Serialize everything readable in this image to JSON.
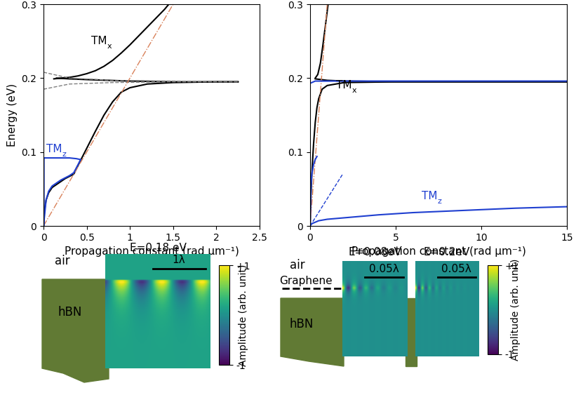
{
  "chart_data": [
    {
      "type": "line",
      "xlabel": "Propagation constant (rad µm⁻¹)",
      "ylabel": "Energy (eV)",
      "xlim": [
        0,
        2.5
      ],
      "xticks": [
        0,
        0.5,
        1,
        1.5,
        2,
        2.5
      ],
      "ylim": [
        0,
        0.3
      ],
      "yticks": [
        0,
        0.1,
        0.2,
        0.3
      ],
      "annotations": [
        {
          "text": "TM",
          "sub": "x",
          "x": 0.55,
          "y": 0.243,
          "color": "#000000"
        },
        {
          "text": "TM",
          "sub": "z",
          "x": 0.03,
          "y": 0.097,
          "color": "#1f3fd0"
        }
      ],
      "series": [
        {
          "color": "#000000",
          "line_style": "solid",
          "x": [
            0.12,
            0.2,
            0.3,
            0.4,
            0.5,
            0.6,
            0.7,
            0.8,
            0.9,
            1.0,
            1.1,
            1.2,
            1.3,
            1.4,
            1.45
          ],
          "values": [
            0.199,
            0.2,
            0.201,
            0.203,
            0.206,
            0.21,
            0.216,
            0.224,
            0.234,
            0.245,
            0.257,
            0.269,
            0.281,
            0.293,
            0.3
          ]
        },
        {
          "color": "#000000",
          "line_style": "solid",
          "x": [
            0,
            0.01,
            0.03,
            0.06,
            0.1,
            0.15,
            0.2,
            0.25,
            0.3,
            0.35,
            0.4,
            0.5,
            0.6,
            0.7,
            0.8,
            0.9,
            1.0,
            1.2,
            1.5,
            2.0,
            2.25
          ],
          "values": [
            0,
            0.02,
            0.035,
            0.045,
            0.052,
            0.056,
            0.06,
            0.064,
            0.067,
            0.07,
            0.082,
            0.105,
            0.128,
            0.15,
            0.168,
            0.181,
            0.187,
            0.192,
            0.194,
            0.195,
            0.195
          ]
        },
        {
          "color": "#000000",
          "line_style": "solid",
          "x": [
            0.15,
            0.3,
            0.5,
            1.0,
            1.5,
            2.0,
            2.25
          ],
          "values": [
            0.2,
            0.199,
            0.198,
            0.196,
            0.195,
            0.195,
            0.195
          ]
        },
        {
          "color": "#808080",
          "line_style": "dashed",
          "x": [
            0,
            0.3,
            0.8,
            1.5,
            2.25
          ],
          "values": [
            0.208,
            0.2,
            0.197,
            0.196,
            0.195
          ]
        },
        {
          "color": "#808080",
          "line_style": "dashed",
          "x": [
            0,
            0.3,
            0.8,
            1.5,
            2.25
          ],
          "values": [
            0.185,
            0.192,
            0.194,
            0.195,
            0.195
          ]
        },
        {
          "color": "#d9825b",
          "line_style": "dashdot",
          "x": [
            0,
            1.5
          ],
          "values": [
            0,
            0.3
          ]
        },
        {
          "color": "#1f3fd0",
          "line_style": "solid",
          "x": [
            0.005,
            0.005,
            0.1,
            0.2,
            0.3,
            0.38,
            0.42
          ],
          "values": [
            0,
            0.092,
            0.092,
            0.092,
            0.092,
            0.091,
            0.09
          ]
        },
        {
          "color": "#1f3fd0",
          "line_style": "solid",
          "x": [
            0,
            0.03,
            0.06,
            0.1,
            0.2,
            0.3,
            0.35,
            0.4,
            0.43
          ],
          "values": [
            0,
            0.035,
            0.047,
            0.054,
            0.062,
            0.068,
            0.072,
            0.083,
            0.09
          ]
        }
      ]
    },
    {
      "type": "line",
      "xlabel": "Propagation constant (rad µm⁻¹)",
      "xlim": [
        0,
        15
      ],
      "xticks": [
        0,
        5,
        10,
        15
      ],
      "ylim": [
        0,
        0.3
      ],
      "yticks": [
        0,
        0.1,
        0.2,
        0.3
      ],
      "annotations": [
        {
          "text": "TM",
          "sub": "x",
          "x": 1.5,
          "y": 0.183,
          "color": "#000000"
        },
        {
          "text": "TM",
          "sub": "z",
          "x": 6.5,
          "y": 0.033,
          "color": "#1f3fd0"
        }
      ],
      "series": [
        {
          "color": "#000000",
          "line_style": "solid",
          "x": [
            0.3,
            0.45,
            0.6,
            0.75,
            0.9,
            1.05
          ],
          "values": [
            0.2,
            0.205,
            0.22,
            0.245,
            0.272,
            0.3
          ]
        },
        {
          "color": "#000000",
          "line_style": "solid",
          "x": [
            0,
            0.05,
            0.1,
            0.2,
            0.3,
            0.4,
            0.5,
            0.7,
            1.0,
            2.0,
            5.0,
            10.0,
            15.0
          ],
          "values": [
            0,
            0.04,
            0.07,
            0.11,
            0.14,
            0.16,
            0.172,
            0.185,
            0.19,
            0.194,
            0.195,
            0.195,
            0.195
          ]
        },
        {
          "color": "#000000",
          "line_style": "solid",
          "x": [
            0.3,
            1,
            2,
            5,
            15
          ],
          "values": [
            0.199,
            0.197,
            0.196,
            0.195,
            0.195
          ]
        },
        {
          "color": "#d9825b",
          "line_style": "dashdot",
          "x": [
            0,
            1.0
          ],
          "values": [
            0,
            0.3
          ]
        },
        {
          "color": "#1f3fd0",
          "line_style": "solid",
          "x": [
            0,
            0.3,
            1,
            3,
            15
          ],
          "values": [
            0.193,
            0.196,
            0.196,
            0.196,
            0.196
          ]
        },
        {
          "color": "#1f3fd0",
          "line_style": "solid",
          "x": [
            0,
            0.05,
            0.1,
            0.2,
            0.3,
            0.4
          ],
          "values": [
            0,
            0.055,
            0.07,
            0.083,
            0.09,
            0.094
          ]
        },
        {
          "color": "#1f3fd0",
          "line_style": "solid",
          "x": [
            0,
            0.1,
            0.5,
            1,
            2,
            4,
            6,
            8,
            10,
            12,
            15
          ],
          "values": [
            0,
            0.003,
            0.007,
            0.009,
            0.011,
            0.015,
            0.018,
            0.02,
            0.022,
            0.024,
            0.026
          ]
        },
        {
          "color": "#1f3fd0",
          "line_style": "dashed",
          "x": [
            0,
            1.9
          ],
          "values": [
            0,
            0.07
          ]
        }
      ]
    },
    {
      "type": "field_map",
      "labels": [
        "air",
        "hBN"
      ],
      "maps": [
        {
          "title": "E=0.18 eV",
          "scale_bar": "1λ"
        }
      ],
      "colorbar": {
        "label": "Amplitude (arb. unit)",
        "range": [
          -1,
          1
        ],
        "ticks": [
          {
            "value": 1,
            "label": "+1"
          },
          -1
        ]
      }
    },
    {
      "type": "field_map",
      "labels": [
        "air",
        "Graphene",
        "hBN"
      ],
      "maps": [
        {
          "title": "E=0.08eV",
          "scale_bar": "0.05λ"
        },
        {
          "title": "E=0.2eV",
          "scale_bar": "0.05λ"
        }
      ],
      "colorbar": {
        "label": "Amplitude (arb. unit)",
        "range": [
          -1,
          1
        ],
        "ticks": [
          {
            "value": 1,
            "label": "+1"
          },
          -1
        ]
      }
    }
  ]
}
